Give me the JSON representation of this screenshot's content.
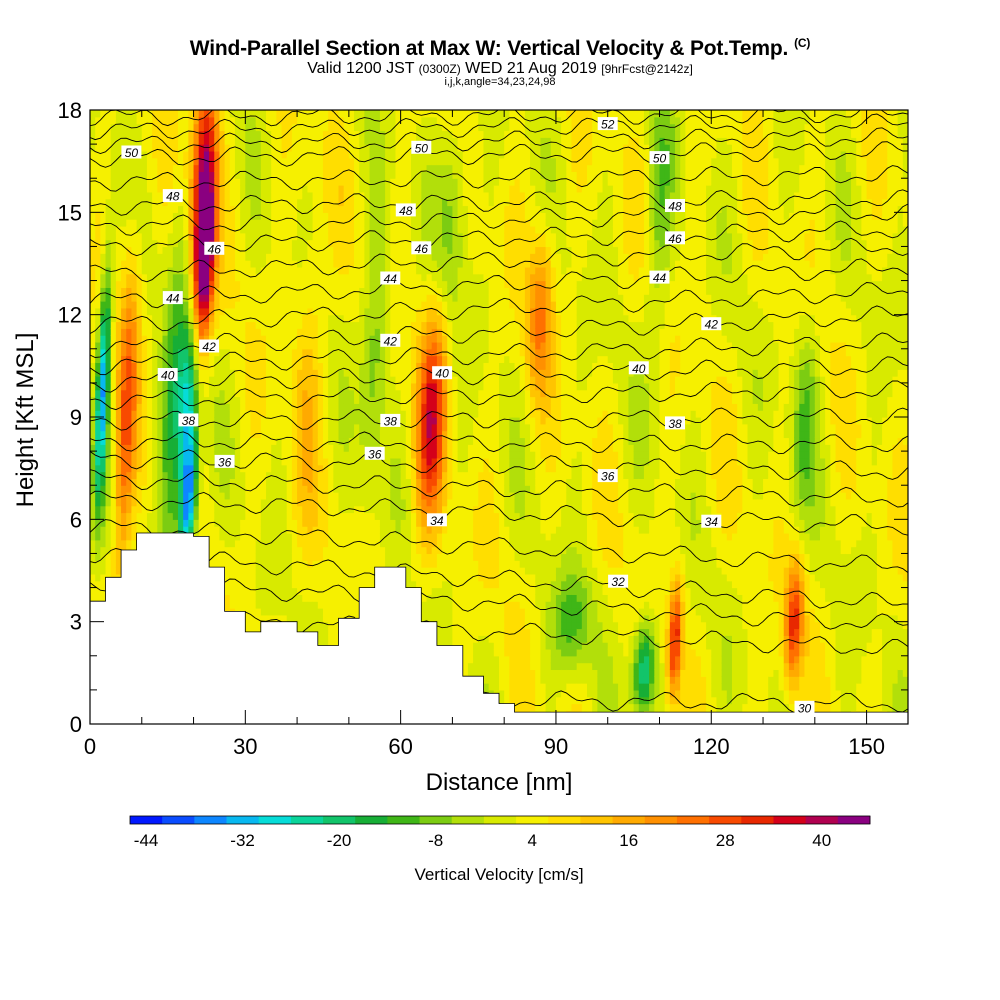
{
  "header": {
    "title": "Wind-Parallel Section at Max W: Vertical Velocity & Pot.Temp.",
    "copyright": "(C)",
    "subtitle_main": "Valid 1200 JST",
    "subtitle_z": "(0300Z)",
    "subtitle_date": "WED 21 Aug 2019",
    "subtitle_fcst": "[9hrFcst@2142z]",
    "indices": "i,j,k,angle=34,23,24,98"
  },
  "chart_data": {
    "type": "heatmap",
    "title": "Wind-Parallel Section at Max W: Vertical Velocity & Pot.Temp.",
    "xlabel": "Distance [nm]",
    "ylabel": "Height [Kft MSL]",
    "xlim": [
      0,
      158
    ],
    "ylim": [
      0,
      18
    ],
    "xticks": [
      "0",
      "30",
      "60",
      "90",
      "120",
      "150"
    ],
    "yticks": [
      "0",
      "3",
      "6",
      "9",
      "12",
      "15",
      "18"
    ],
    "colorbar": {
      "label": "Vertical Velocity [cm/s]",
      "tick_labels": [
        "-44",
        "-32",
        "-20",
        "-8",
        "4",
        "16",
        "28",
        "40"
      ],
      "min": -46,
      "max": 46,
      "step": 4,
      "colors": [
        "#0018ff",
        "#0a4cff",
        "#0d86ff",
        "#08b8f0",
        "#06dcd8",
        "#0ad49a",
        "#12c46a",
        "#17ae36",
        "#3fb617",
        "#7ccc12",
        "#b2df0a",
        "#d8ea00",
        "#f6f000",
        "#ffde00",
        "#ffc400",
        "#ffaa00",
        "#ff9000",
        "#ff7000",
        "#f84a00",
        "#e82800",
        "#d4001a",
        "#b00050",
        "#8a0080"
      ]
    },
    "terrain": [
      [
        0,
        3.6
      ],
      [
        3,
        4.3
      ],
      [
        6,
        5.1
      ],
      [
        9,
        5.6
      ],
      [
        14,
        5.6
      ],
      [
        20,
        5.5
      ],
      [
        23,
        4.6
      ],
      [
        26,
        3.3
      ],
      [
        30,
        2.7
      ],
      [
        33,
        3.0
      ],
      [
        40,
        2.7
      ],
      [
        44,
        2.3
      ],
      [
        48,
        3.1
      ],
      [
        52,
        4.0
      ],
      [
        55,
        4.6
      ],
      [
        61,
        4.0
      ],
      [
        64,
        3.0
      ],
      [
        67,
        2.3
      ],
      [
        72,
        1.4
      ],
      [
        76,
        0.9
      ],
      [
        79,
        0.6
      ],
      [
        82,
        0.35
      ],
      [
        158,
        0.35
      ]
    ],
    "updrafts": [
      {
        "x": 7,
        "z": 9,
        "w": 22,
        "sx": 2.0,
        "sz": 5
      },
      {
        "x": 16,
        "z": 9,
        "w": -16,
        "sx": 2.5,
        "sz": 5
      },
      {
        "x": 2.5,
        "z": 10,
        "w": -35,
        "sx": 1.2,
        "sz": 3.5
      },
      {
        "x": 22,
        "z": 13.5,
        "w": 44,
        "sx": 2.0,
        "sz": 2.6
      },
      {
        "x": 22,
        "z": 16.5,
        "w": 30,
        "sx": 2.5,
        "sz": 3
      },
      {
        "x": 19,
        "z": 6.5,
        "w": -40,
        "sx": 1.6,
        "sz": 2
      },
      {
        "x": 19,
        "z": 9.5,
        "w": -26,
        "sx": 2.0,
        "sz": 2.5
      },
      {
        "x": 55,
        "z": 11,
        "w": -12,
        "sx": 2.5,
        "sz": 4
      },
      {
        "x": 66,
        "z": 9,
        "w": 30,
        "sx": 2.8,
        "sz": 3.3
      },
      {
        "x": 70,
        "z": 15,
        "w": -12,
        "sx": 3.0,
        "sz": 3
      },
      {
        "x": 87,
        "z": 12,
        "w": 18,
        "sx": 2.5,
        "sz": 2.5
      },
      {
        "x": 93,
        "z": 3,
        "w": -14,
        "sx": 4.0,
        "sz": 1.5
      },
      {
        "x": 107,
        "z": 1.6,
        "w": -28,
        "sx": 2.2,
        "sz": 1.4
      },
      {
        "x": 113,
        "z": 2.5,
        "w": 30,
        "sx": 1.3,
        "sz": 1.7
      },
      {
        "x": 136,
        "z": 3,
        "w": 28,
        "sx": 1.8,
        "sz": 1.8
      },
      {
        "x": 138,
        "z": 9,
        "w": -12,
        "sx": 2.5,
        "sz": 3
      },
      {
        "x": 110,
        "z": 15,
        "w": -10,
        "sx": 2.5,
        "sz": 4
      },
      {
        "x": 42,
        "z": 10,
        "w": 8,
        "sx": 3.0,
        "sz": 5
      }
    ],
    "isentropes": [
      {
        "label": "30",
        "z_left": 0.8,
        "z_right": 0.6,
        "label_x": 138
      },
      {
        "label": "32",
        "z_left": 5.0,
        "z_right": 3.5,
        "label_x": 102
      },
      {
        "label": "34",
        "z_left": 6.6,
        "z_right": 5.8,
        "label_x": 67
      },
      {
        "label": "34",
        "z_left": 6.6,
        "z_right": 5.8,
        "label_x": 120
      },
      {
        "label": "36",
        "z_left": 7.8,
        "z_right": 7.4,
        "label_x": 26
      },
      {
        "label": "36",
        "z_left": 7.8,
        "z_right": 7.4,
        "label_x": 55
      },
      {
        "label": "36",
        "z_left": 7.8,
        "z_right": 7.4,
        "label_x": 100
      },
      {
        "label": "38",
        "z_left": 8.9,
        "z_right": 9.0,
        "label_x": 19
      },
      {
        "label": "38",
        "z_left": 8.9,
        "z_right": 9.0,
        "label_x": 58
      },
      {
        "label": "38",
        "z_left": 8.9,
        "z_right": 9.0,
        "label_x": 113
      },
      {
        "label": "40",
        "z_left": 10.0,
        "z_right": 10.5,
        "label_x": 15
      },
      {
        "label": "40",
        "z_left": 10.0,
        "z_right": 10.5,
        "label_x": 68
      },
      {
        "label": "40",
        "z_left": 10.0,
        "z_right": 10.5,
        "label_x": 106
      },
      {
        "label": "42",
        "z_left": 11.0,
        "z_right": 12.0,
        "label_x": 23
      },
      {
        "label": "42",
        "z_left": 11.0,
        "z_right": 12.0,
        "label_x": 58
      },
      {
        "label": "42",
        "z_left": 11.0,
        "z_right": 12.0,
        "label_x": 120
      },
      {
        "label": "44",
        "z_left": 12.4,
        "z_right": 13.4,
        "label_x": 16
      },
      {
        "label": "44",
        "z_left": 12.4,
        "z_right": 13.4,
        "label_x": 58
      },
      {
        "label": "44",
        "z_left": 12.4,
        "z_right": 13.4,
        "label_x": 110
      },
      {
        "label": "46",
        "z_left": 14.0,
        "z_right": 14.5,
        "label_x": 24
      },
      {
        "label": "46",
        "z_left": 14.0,
        "z_right": 14.5,
        "label_x": 64
      },
      {
        "label": "46",
        "z_left": 14.0,
        "z_right": 14.5,
        "label_x": 113
      },
      {
        "label": "48",
        "z_left": 15.2,
        "z_right": 15.4,
        "label_x": 16
      },
      {
        "label": "48",
        "z_left": 15.2,
        "z_right": 15.4,
        "label_x": 61
      },
      {
        "label": "48",
        "z_left": 15.2,
        "z_right": 15.4,
        "label_x": 113
      },
      {
        "label": "50",
        "z_left": 16.6,
        "z_right": 16.8,
        "label_x": 8
      },
      {
        "label": "50",
        "z_left": 16.6,
        "z_right": 16.8,
        "label_x": 64
      },
      {
        "label": "50",
        "z_left": 16.6,
        "z_right": 16.8,
        "label_x": 110
      },
      {
        "label": "52",
        "z_left": 17.4,
        "z_right": 17.6,
        "label_x": 100
      }
    ],
    "isentropes_unlabeled": [
      {
        "z_left": 3.2,
        "z_right": 2.2
      },
      {
        "z_left": 4.2,
        "z_right": 2.9
      },
      {
        "z_left": 5.8,
        "z_right": 4.6
      },
      {
        "z_left": 7.2,
        "z_right": 6.6
      },
      {
        "z_left": 8.3,
        "z_right": 8.2
      },
      {
        "z_left": 9.5,
        "z_right": 9.8
      },
      {
        "z_left": 10.5,
        "z_right": 11.2
      },
      {
        "z_left": 11.7,
        "z_right": 12.7
      },
      {
        "z_left": 13.2,
        "z_right": 14.0
      },
      {
        "z_left": 14.6,
        "z_right": 15.0
      },
      {
        "z_left": 15.9,
        "z_right": 16.1
      },
      {
        "z_left": 17.0,
        "z_right": 17.2
      },
      {
        "z_left": 17.8,
        "z_right": 17.9
      }
    ]
  }
}
